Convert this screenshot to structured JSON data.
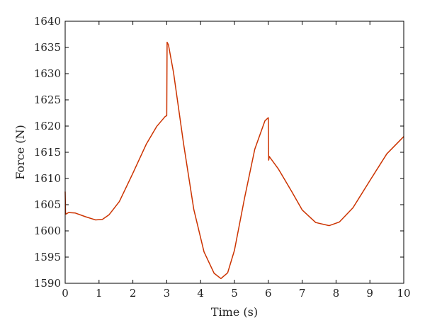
{
  "chart_data": {
    "type": "line",
    "title": "",
    "xlabel": "Time (s)",
    "ylabel": "Force (N)",
    "xlim": [
      0,
      10
    ],
    "ylim": [
      1590,
      1640
    ],
    "x_ticks": [
      0,
      1,
      2,
      3,
      4,
      5,
      6,
      7,
      8,
      9,
      10
    ],
    "y_ticks": [
      1590,
      1595,
      1600,
      1605,
      1610,
      1615,
      1620,
      1625,
      1630,
      1635,
      1640
    ],
    "grid": false,
    "line_color": "#cc3300",
    "series": [
      {
        "x": [
          0,
          0.01,
          0.02,
          0.1,
          0.3,
          0.6,
          0.9,
          1.1,
          1.3,
          1.6,
          2.0,
          2.4,
          2.7,
          2.95,
          3.0,
          3.01,
          3.05,
          3.2,
          3.5,
          3.8,
          4.1,
          4.4,
          4.6,
          4.8,
          5.0,
          5.3,
          5.6,
          5.9,
          6.0,
          6.01,
          6.03,
          6.05,
          6.3,
          6.7,
          7.0,
          7.4,
          7.8,
          8.1,
          8.5,
          9.0,
          9.5,
          10.0
        ],
        "y": [
          1607.5,
          1603.5,
          1603.2,
          1603.5,
          1603.4,
          1602.7,
          1602.1,
          1602.2,
          1603.1,
          1605.6,
          1611.0,
          1616.6,
          1619.9,
          1621.8,
          1622,
          1636,
          1635.5,
          1630.2,
          1616.5,
          1604.1,
          1596.0,
          1591.9,
          1590.9,
          1592.0,
          1596.3,
          1606.3,
          1615.6,
          1621.0,
          1621.6,
          1613.5,
          1614.2,
          1614.0,
          1611.8,
          1607.4,
          1604.0,
          1601.6,
          1601.0,
          1601.7,
          1604.4,
          1609.6,
          1614.7,
          1618.0
        ]
      }
    ]
  }
}
